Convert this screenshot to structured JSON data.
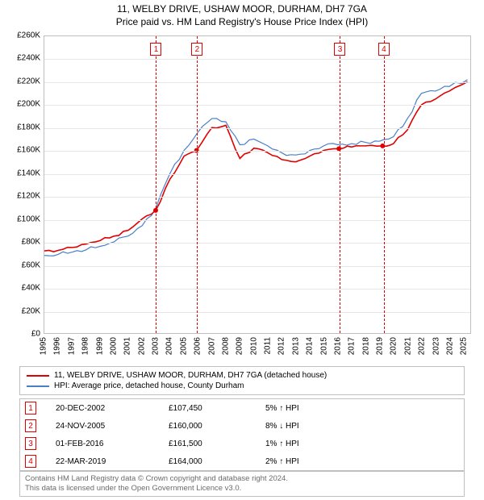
{
  "title_line1": "11, WELBY DRIVE, USHAW MOOR, DURHAM, DH7 7GA",
  "title_line2": "Price paid vs. HM Land Registry's House Price Index (HPI)",
  "chart": {
    "type": "line",
    "background_color": "#ffffff",
    "grid_color": "#e6e6e6",
    "border_color": "#bfbfbf",
    "xlim": [
      1995,
      2025.5
    ],
    "ylim": [
      0,
      260000
    ],
    "ytick_step": 20000,
    "ytick_prefix": "£",
    "ytick_suffix": "K",
    "yticks": [
      {
        "v": 0,
        "label": "£0"
      },
      {
        "v": 20000,
        "label": "£20K"
      },
      {
        "v": 40000,
        "label": "£40K"
      },
      {
        "v": 60000,
        "label": "£60K"
      },
      {
        "v": 80000,
        "label": "£80K"
      },
      {
        "v": 100000,
        "label": "£100K"
      },
      {
        "v": 120000,
        "label": "£120K"
      },
      {
        "v": 140000,
        "label": "£140K"
      },
      {
        "v": 160000,
        "label": "£160K"
      },
      {
        "v": 180000,
        "label": "£180K"
      },
      {
        "v": 200000,
        "label": "£200K"
      },
      {
        "v": 220000,
        "label": "£220K"
      },
      {
        "v": 240000,
        "label": "£240K"
      },
      {
        "v": 260000,
        "label": "£260K"
      }
    ],
    "xticks": [
      1995,
      1996,
      1997,
      1998,
      1999,
      2000,
      2001,
      2002,
      2003,
      2004,
      2005,
      2006,
      2007,
      2008,
      2009,
      2010,
      2011,
      2012,
      2013,
      2014,
      2015,
      2016,
      2017,
      2018,
      2019,
      2020,
      2021,
      2022,
      2023,
      2024,
      2025
    ],
    "label_fontsize": 10,
    "vline_color": "#e00000",
    "vline_dash": "4,3",
    "series": [
      {
        "name": "11, WELBY DRIVE, USHAW MOOR, DURHAM, DH7 7GA (detached house)",
        "color": "#e00000",
        "line_width": 1.6,
        "x": [
          1995,
          1996,
          1997,
          1998,
          1999,
          2000,
          2001,
          2002,
          2002.97,
          2004,
          2005,
          2005.9,
          2007,
          2008,
          2009,
          2010,
          2011,
          2012,
          2013,
          2014,
          2015,
          2016.09,
          2017,
          2018,
          2019.22,
          2020,
          2021,
          2022,
          2023,
          2024,
          2025.3
        ],
        "y": [
          72000,
          72500,
          75000,
          78000,
          81000,
          85000,
          90000,
          100000,
          107450,
          135000,
          155000,
          160000,
          180000,
          182000,
          153000,
          162000,
          158000,
          152000,
          150000,
          155000,
          160000,
          161500,
          163000,
          164000,
          164000,
          166000,
          178000,
          200000,
          205000,
          212000,
          220000
        ]
      },
      {
        "name": "HPI: Average price, detached house, County Durham",
        "color": "#4a7ec8",
        "line_width": 1.2,
        "x": [
          1995,
          1996,
          1997,
          1998,
          1999,
          2000,
          2001,
          2002,
          2003,
          2004,
          2005,
          2006,
          2007,
          2008,
          2009,
          2010,
          2011,
          2012,
          2013,
          2014,
          2015,
          2016,
          2017,
          2018,
          2019,
          2020,
          2021,
          2022,
          2023,
          2024,
          2025.3
        ],
        "y": [
          68000,
          69000,
          71000,
          73000,
          76000,
          80000,
          85000,
          94000,
          110000,
          140000,
          160000,
          176000,
          188000,
          185000,
          165000,
          170000,
          164000,
          158000,
          156000,
          160000,
          164000,
          165000,
          166000,
          167000,
          168000,
          172000,
          188000,
          210000,
          212000,
          216000,
          222000
        ]
      }
    ],
    "markers": [
      {
        "n": "1",
        "x": 2002.97,
        "y": 107450,
        "label_top": 8
      },
      {
        "n": "2",
        "x": 2005.9,
        "y": 160000,
        "label_top": 8
      },
      {
        "n": "3",
        "x": 2016.09,
        "y": 161500,
        "label_top": 8
      },
      {
        "n": "4",
        "x": 2019.22,
        "y": 164000,
        "label_top": 8
      }
    ],
    "marker_point_radius": 3
  },
  "legend": {
    "items": [
      {
        "color": "#e00000",
        "label": "11, WELBY DRIVE, USHAW MOOR, DURHAM, DH7 7GA (detached house)"
      },
      {
        "color": "#4a7ec8",
        "label": "HPI: Average price, detached house, County Durham"
      }
    ]
  },
  "transactions": [
    {
      "n": "1",
      "date": "20-DEC-2002",
      "price": "£107,450",
      "delta": "5% ↑ HPI"
    },
    {
      "n": "2",
      "date": "24-NOV-2005",
      "price": "£160,000",
      "delta": "8% ↓ HPI"
    },
    {
      "n": "3",
      "date": "01-FEB-2016",
      "price": "£161,500",
      "delta": "1% ↑ HPI"
    },
    {
      "n": "4",
      "date": "22-MAR-2019",
      "price": "£164,000",
      "delta": "2% ↑ HPI"
    }
  ],
  "footer": {
    "line1": "Contains HM Land Registry data © Crown copyright and database right 2024.",
    "line2": "This data is licensed under the Open Government Licence v3.0."
  }
}
